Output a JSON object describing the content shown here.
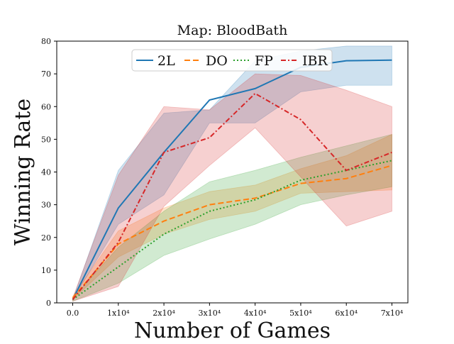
{
  "chart_data": {
    "type": "line",
    "title": "Map: BloodBath",
    "xlabel": "Number of Games",
    "ylabel": "Winning Rate",
    "x": [
      0,
      10000,
      20000,
      30000,
      40000,
      50000,
      60000,
      70000
    ],
    "x_tick_labels": [
      "0.0",
      "1x10⁴",
      "2x10⁴",
      "3x10⁴",
      "4x10⁴",
      "5x10⁴",
      "6x10⁴",
      "7x10⁴"
    ],
    "xlim": [
      -3500,
      73500
    ],
    "ylim": [
      0,
      80
    ],
    "y_ticks": [
      0,
      10,
      20,
      30,
      40,
      50,
      60,
      70,
      80
    ],
    "grid": false,
    "legend_position": "top-center",
    "series": [
      {
        "name": "2L",
        "color": "#1f77b4",
        "dash": "solid",
        "values": [
          1,
          29,
          46,
          62,
          65.5,
          72,
          74,
          74.2
        ],
        "lower": [
          1,
          24,
          33,
          55,
          55,
          64.5,
          66.5,
          66.5
        ],
        "upper": [
          1,
          40.5,
          58,
          59,
          74,
          77,
          78.5,
          78.5
        ]
      },
      {
        "name": "DO",
        "color": "#ff7f0e",
        "dash": "dashed",
        "values": [
          1.5,
          18,
          25,
          30,
          32,
          36.5,
          38,
          42
        ],
        "lower": [
          1,
          14,
          21,
          25.5,
          28,
          33.5,
          34,
          34.5
        ],
        "upper": [
          2,
          22,
          29,
          34,
          36,
          41,
          45,
          51.5
        ]
      },
      {
        "name": "FP",
        "color": "#2ca02c",
        "dash": "dotted",
        "values": [
          1,
          11,
          21,
          28,
          31.5,
          37.5,
          40.5,
          43.5
        ],
        "lower": [
          0.5,
          6,
          14.5,
          19.5,
          24,
          30,
          33,
          35.5
        ],
        "upper": [
          1.5,
          17,
          28,
          37,
          40.5,
          44.5,
          48,
          51.5
        ]
      },
      {
        "name": "IBR",
        "color": "#d62728",
        "dash": "dashdot",
        "values": [
          1,
          18.5,
          46,
          50.5,
          64,
          56,
          40.5,
          46
        ],
        "lower": [
          0.5,
          5,
          29.5,
          42,
          53.5,
          38.5,
          23.5,
          28
        ],
        "upper": [
          1.5,
          39,
          60,
          59,
          70,
          69.5,
          65,
          60
        ]
      }
    ]
  }
}
